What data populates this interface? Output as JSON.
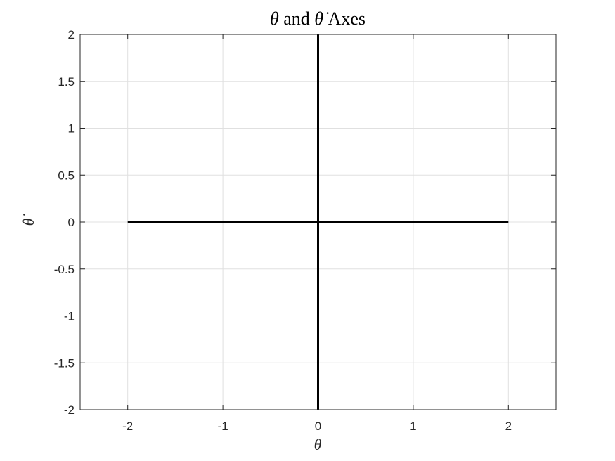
{
  "chart_data": {
    "type": "line",
    "title": {
      "sym1": "θ",
      "mid": " and ",
      "sym2": "θ̇",
      "tail": " Axes"
    },
    "xlabel": "θ",
    "ylabel": "θ̇",
    "xlim": [
      -2.5,
      2.5
    ],
    "ylim": [
      -2,
      2
    ],
    "xticks": [
      -2,
      -1,
      0,
      1,
      2
    ],
    "xtick_labels": [
      "-2",
      "-1",
      "0",
      "1",
      "2"
    ],
    "yticks": [
      -2,
      -1.5,
      -1,
      -0.5,
      0,
      0.5,
      1,
      1.5,
      2
    ],
    "ytick_labels": [
      "-2",
      "-1.5",
      "-1",
      "-0.5",
      "0",
      "0.5",
      "1",
      "1.5",
      "2"
    ],
    "grid": true,
    "series": [
      {
        "x": [
          -2,
          2
        ],
        "y": [
          0,
          0
        ],
        "color": "#000000"
      },
      {
        "x": [
          0,
          0
        ],
        "y": [
          -2,
          2
        ],
        "color": "#000000"
      }
    ]
  },
  "colors": {
    "axes": "#262626",
    "grid": "#e0e0e0",
    "line": "#000000"
  }
}
